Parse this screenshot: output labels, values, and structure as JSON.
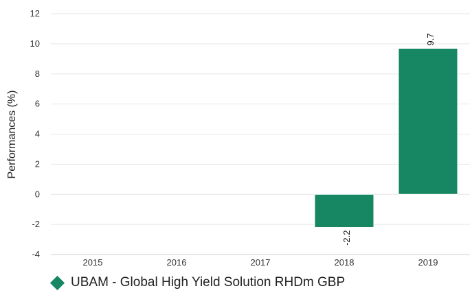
{
  "chart_data": {
    "type": "bar",
    "categories": [
      "2015",
      "2016",
      "2017",
      "2018",
      "2019"
    ],
    "series": [
      {
        "name": "UBAM - Global High Yield Solution RHDm GBP",
        "values": [
          null,
          null,
          null,
          -2.2,
          9.7
        ],
        "data_labels": [
          "",
          "",
          "",
          "-2.2",
          "9.7"
        ],
        "color": "#168663"
      }
    ],
    "ylabel": "Performances (%)",
    "xlabel": "",
    "ylim": [
      -4,
      12
    ],
    "yticks": [
      "-4",
      "-2",
      "0",
      "2",
      "4",
      "6",
      "8",
      "10",
      "12"
    ],
    "grid": true,
    "legend_position": "bottom-left"
  }
}
